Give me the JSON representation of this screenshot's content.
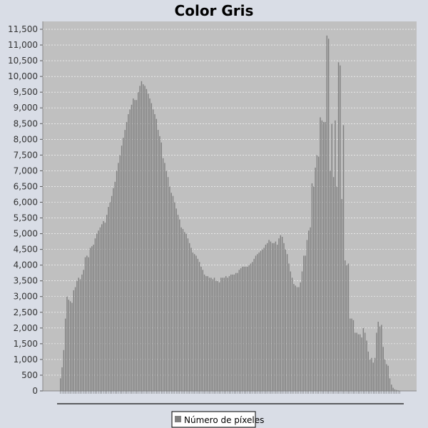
{
  "chart_data": {
    "type": "bar",
    "title": "Color Gris",
    "xlabel": "",
    "ylabel": "",
    "ylim": [
      0,
      11750
    ],
    "yticks": [
      0,
      500,
      1000,
      1500,
      2000,
      2500,
      3000,
      3500,
      4000,
      4500,
      5000,
      5500,
      6000,
      6500,
      7000,
      7500,
      8000,
      8500,
      9000,
      9500,
      10000,
      10500,
      11000,
      11500
    ],
    "ytick_labels": [
      "0",
      "500",
      "1,000",
      "1,500",
      "2,000",
      "2,500",
      "3,000",
      "3,500",
      "4,000",
      "4,500",
      "5,000",
      "5,500",
      "6,000",
      "6,500",
      "7,000",
      "7,500",
      "8,000",
      "8,500",
      "9,000",
      "9,500",
      "10,000",
      "10,500",
      "11,000",
      "11,500"
    ],
    "grid": true,
    "legend_position": "bottom-center",
    "series": [
      {
        "name": "Número de píxeles",
        "color": "#808080",
        "values": [
          400,
          750,
          1300,
          2300,
          3000,
          2900,
          2850,
          2800,
          3200,
          3300,
          3500,
          3600,
          3550,
          3700,
          3850,
          4250,
          4300,
          4250,
          4550,
          4600,
          4650,
          4850,
          5000,
          5100,
          5200,
          5300,
          5400,
          5350,
          5600,
          5850,
          6000,
          6200,
          6450,
          6650,
          7000,
          7250,
          7500,
          7800,
          8050,
          8300,
          8550,
          8800,
          8950,
          9100,
          9300,
          9250,
          9250,
          9500,
          9700,
          9850,
          9750,
          9700,
          9600,
          9450,
          9300,
          9150,
          8950,
          8800,
          8650,
          8300,
          8100,
          7900,
          7400,
          7250,
          7000,
          6800,
          6500,
          6300,
          6200,
          6000,
          5800,
          5600,
          5450,
          5200,
          5150,
          5050,
          5000,
          4850,
          4700,
          4550,
          4400,
          4350,
          4300,
          4200,
          4100,
          3950,
          3850,
          3700,
          3650,
          3650,
          3600,
          3600,
          3550,
          3600,
          3500,
          3500,
          3450,
          3600,
          3600,
          3600,
          3650,
          3600,
          3650,
          3700,
          3700,
          3700,
          3750,
          3750,
          3850,
          3900,
          3950,
          3950,
          3950,
          3950,
          4000,
          4050,
          4100,
          4200,
          4300,
          4350,
          4400,
          4450,
          4500,
          4550,
          4650,
          4700,
          4800,
          4750,
          4700,
          4700,
          4750,
          4650,
          4850,
          4950,
          4900,
          4700,
          4500,
          4350,
          4050,
          3800,
          3600,
          3400,
          3350,
          3300,
          3300,
          3450,
          3800,
          4300,
          4300,
          4800,
          5100,
          5200,
          6600,
          6500,
          7100,
          7500,
          7450,
          8700,
          8600,
          8550,
          8550,
          11300,
          11200,
          7000,
          8500,
          6800,
          8600,
          6500,
          10450,
          10350,
          6100,
          8450,
          4150,
          4000,
          4050,
          2300,
          2300,
          2250,
          1850,
          1850,
          1800,
          1800,
          1700,
          2000,
          1850,
          1600,
          1250,
          1000,
          1050,
          900,
          1050,
          1850,
          2200,
          2050,
          2100,
          1400,
          1000,
          850,
          800,
          400,
          200,
          100,
          50,
          30,
          20,
          10
        ]
      }
    ]
  }
}
